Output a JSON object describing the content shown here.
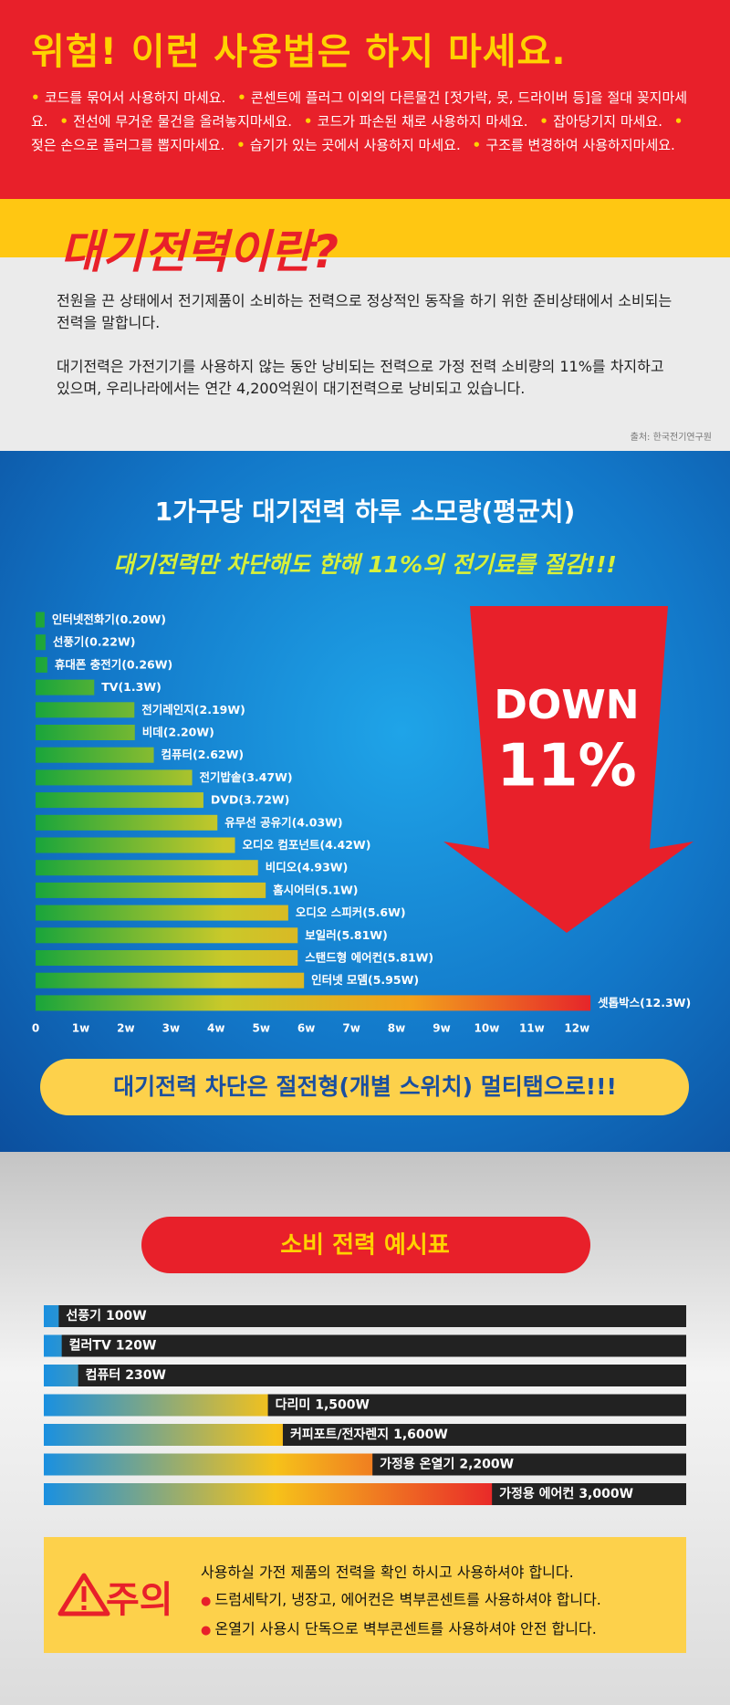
{
  "warning": {
    "title": "위험! 이런 사용법은 하지 마세요.",
    "items": [
      "코드를 묶어서 사용하지 마세요.",
      "콘센트에 플러그 이외의 다른물건 [젓가락, 못, 드라이버 등]을 절대 꽂지마세요.",
      "전선에 무거운 물건을 올려놓지마세요.",
      "코드가 파손된 채로 사용하지 마세요.",
      "잡아당기지 마세요.",
      "젖은 손으로 플러그를 뽑지마세요.",
      "습기가 있는 곳에서 사용하지 마세요.",
      "구조를 변경하여 사용하지마세요."
    ]
  },
  "standby": {
    "title": "대기전력이란?",
    "paragraphs": [
      "전원을 끈 상태에서 전기제품이 소비하는 전력으로 정상적인 동작을 하기 위한 준비상태에서 소비되는전력을 말합니다.",
      "대기전력은 가전기기를 사용하지 않는 동안 낭비되는 전력으로 가정 전력 소비량의 11%를 차지하고 있으며, 우리나라에서는 연간 4,200억원이 대기전력으로 낭비되고 있습니다."
    ],
    "source": "출처: 한국전기연구원"
  },
  "chart_data": [
    {
      "type": "bar",
      "title": "1가구당 대기전력 하루 소모량(평균치)",
      "subtitle": "대기전력만 차단해도 한해 11%의 전기료를 절감!!!",
      "annotations": [
        "DOWN",
        "11%"
      ],
      "categories": [
        "인터넷전화기",
        "선풍기",
        "휴대폰 충전기",
        "TV",
        "전기레인지",
        "비데",
        "컴퓨터",
        "전기밥솥",
        "DVD",
        "유무선 공유기",
        "오디오 컴포넌트",
        "비디오",
        "홈시어터",
        "오디오 스피커",
        "보일러",
        "스탠드형 에어컨",
        "인터넷 모뎀",
        "셋톱박스"
      ],
      "values": [
        0.2,
        0.22,
        0.26,
        1.3,
        2.19,
        2.2,
        2.62,
        3.47,
        3.72,
        4.03,
        4.42,
        4.93,
        5.1,
        5.6,
        5.81,
        5.81,
        5.95,
        12.3
      ],
      "value_labels": [
        "(0.20W)",
        "(0.22W)",
        "(0.26W)",
        "(1.3W)",
        "(2.19W)",
        "(2.20W)",
        "(2.62W)",
        "(3.47W)",
        "(3.72W)",
        "(4.03W)",
        "(4.42W)",
        "(4.93W)",
        "(5.1W)",
        "(5.6W)",
        "(5.81W)",
        "(5.81W)",
        "(5.95W)",
        "(12.3W)"
      ],
      "xlim": [
        0,
        12.5
      ],
      "xticks": [
        0,
        {
          "value": 1,
          "label": "1w"
        },
        {
          "value": 2,
          "label": "2w"
        },
        {
          "value": 3,
          "label": "3w"
        },
        {
          "value": 4,
          "label": "4w"
        },
        {
          "value": 5,
          "label": "5w"
        },
        {
          "value": 6,
          "label": "6w"
        },
        {
          "value": 7,
          "label": "7w"
        },
        {
          "value": 8,
          "label": "8w"
        },
        {
          "value": 9,
          "label": "9w"
        },
        {
          "value": 10,
          "label": "10w"
        },
        {
          "value": 11,
          "label": "11w"
        },
        {
          "value": 12,
          "label": "12w"
        }
      ],
      "colors": [
        "#19a53b",
        "#c9c92a",
        "#f2a11c",
        "#e51f2b"
      ]
    },
    {
      "type": "bar",
      "title": "소비 전력 예시표",
      "categories": [
        "선풍기",
        "컬러TV",
        "컴퓨터",
        "다리미",
        "커피포트/전자렌지",
        "가정용 온열기",
        "가정용 에어컨"
      ],
      "values": [
        100,
        120,
        230,
        1500,
        1600,
        2200,
        3000
      ],
      "value_labels": [
        "100W",
        "120W",
        "230W",
        "1,500W",
        "1,600W",
        "2,200W",
        "3,000W"
      ],
      "xlim": [
        0,
        4300
      ],
      "colors": [
        "#1a90e0",
        "#f6c21a",
        "#e8202a"
      ],
      "track_color": "#222222"
    }
  ],
  "banner": "대기전력 차단은 절전형(개별 스위치) 멀티탭으로!!!",
  "caution": {
    "label": "주의",
    "lines": [
      "사용하실 가전 제품의 전력을 확인 하시고 사용하셔야 합니다.",
      "드럼세탁기, 냉장고, 에어컨은 벽부콘센트를 사용하셔야 합니다.",
      "온열기 사용시 단독으로 벽부콘센트를 사용하셔야 안전 합니다."
    ]
  }
}
